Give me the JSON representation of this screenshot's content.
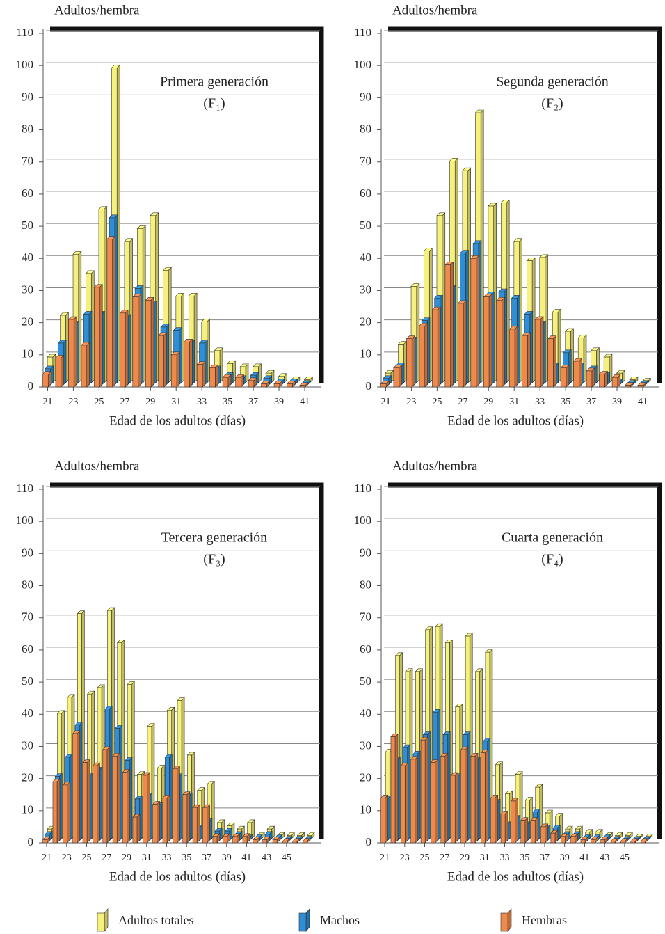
{
  "chart_data": [
    {
      "type": "bar",
      "y_label": "Adultos/hembra",
      "title": "Primera generación",
      "subtitle": "(F₁)",
      "x_label": "Edad de los adultos (días)",
      "categories": [
        "21",
        null,
        "23",
        null,
        "25",
        null,
        "27",
        null,
        "29",
        null,
        "31",
        null,
        "33",
        null,
        "35",
        null,
        "37",
        null,
        "39",
        null,
        "41"
      ],
      "series": [
        {
          "name": "Adultos totales",
          "color": "#f6f07c",
          "values": [
            8,
            21,
            40,
            34,
            54,
            98,
            44,
            48,
            52,
            35,
            27,
            27,
            19,
            10,
            6,
            5,
            5,
            3,
            2,
            1,
            1
          ]
        },
        {
          "name": "Machos",
          "color": "#2e8fd6",
          "values": [
            5,
            13,
            19,
            22,
            22,
            52,
            21,
            30,
            25,
            18,
            17,
            13,
            13,
            5,
            3,
            2,
            3,
            2,
            1,
            1,
            0.5
          ]
        },
        {
          "name": "Hembras",
          "color": "#ef8a4c",
          "values": [
            4,
            9,
            21,
            13,
            31,
            46,
            23,
            28,
            27,
            16,
            10,
            14,
            7,
            6,
            3,
            3,
            2,
            1,
            1,
            1,
            0.5
          ]
        }
      ],
      "ylim": [
        0,
        110
      ],
      "yticks": [
        0,
        10,
        20,
        30,
        40,
        50,
        60,
        70,
        80,
        90,
        100,
        110
      ],
      "grid": true
    },
    {
      "type": "bar",
      "y_label": "Adultos/hembra",
      "title": "Segunda generación",
      "subtitle": "(F₂)",
      "x_label": "Edad de los adultos (días)",
      "categories": [
        "21",
        null,
        "23",
        null,
        "25",
        null,
        "27",
        null,
        "29",
        null,
        "31",
        null,
        "33",
        null,
        "35",
        null,
        "37",
        null,
        "39",
        null,
        "41"
      ],
      "series": [
        {
          "name": "Adultos totales",
          "color": "#f6f07c",
          "values": [
            3,
            12,
            30,
            41,
            52,
            69,
            66,
            84,
            55,
            56,
            44,
            38,
            39,
            22,
            16,
            14,
            10,
            8,
            3,
            1,
            0.5
          ]
        },
        {
          "name": "Machos",
          "color": "#2e8fd6",
          "values": [
            2,
            6,
            14,
            20,
            27,
            30,
            41,
            44,
            28,
            29,
            27,
            22,
            19,
            6,
            10,
            6,
            5,
            3,
            1,
            0.5,
            0.5
          ]
        },
        {
          "name": "Hembras",
          "color": "#ef8a4c",
          "values": [
            1,
            6,
            15,
            19,
            24,
            38,
            26,
            40,
            28,
            27,
            18,
            16,
            21,
            15,
            6,
            8,
            5,
            4,
            3,
            0.5,
            0.5
          ]
        }
      ],
      "ylim": [
        0,
        110
      ],
      "yticks": [
        0,
        10,
        20,
        30,
        40,
        50,
        60,
        70,
        80,
        90,
        100,
        110
      ],
      "grid": true
    },
    {
      "type": "bar",
      "y_label": "Adultos/hembra",
      "title": "Tercera generación",
      "subtitle": "(F₃)",
      "x_label": "Edad de los adultos (días)",
      "categories": [
        "21",
        null,
        "23",
        null,
        "25",
        null,
        "27",
        null,
        "29",
        null,
        "31",
        null,
        "33",
        null,
        "35",
        null,
        "37",
        null,
        "39",
        null,
        "41",
        null,
        "43",
        null,
        "45",
        null,
        null
      ],
      "series": [
        {
          "name": "Adultos totales",
          "color": "#f6f07c",
          "values": [
            3,
            39,
            44,
            70,
            45,
            47,
            71,
            61,
            48,
            20,
            35,
            22,
            40,
            43,
            26,
            15,
            17,
            5,
            4,
            3,
            5,
            1,
            3,
            1,
            1,
            1,
            1
          ]
        },
        {
          "name": "Machos",
          "color": "#2e8fd6",
          "values": [
            2,
            20,
            26,
            36,
            20,
            22,
            41,
            35,
            25,
            13,
            14,
            11,
            26,
            20,
            14,
            4,
            6,
            3,
            3,
            2,
            1,
            1,
            2,
            1,
            0.5,
            0.5,
            0.5
          ]
        },
        {
          "name": "Hembras",
          "color": "#ef8a4c",
          "values": [
            1,
            19,
            18,
            34,
            25,
            24,
            29,
            27,
            22,
            8,
            21,
            12,
            14,
            23,
            15,
            11,
            11,
            2,
            2,
            2,
            2,
            1,
            1,
            1,
            0.5,
            0.5,
            0.5
          ]
        }
      ],
      "ylim": [
        0,
        110
      ],
      "yticks": [
        0,
        10,
        20,
        30,
        40,
        50,
        60,
        70,
        80,
        90,
        100,
        110
      ],
      "grid": true
    },
    {
      "type": "bar",
      "y_label": "Adultos/hembra",
      "title": "Cuarta generación",
      "subtitle": "(F₄)",
      "x_label": "Edad de los adultos (días)",
      "categories": [
        "21",
        null,
        "23",
        null,
        "25",
        null,
        "27",
        null,
        "29",
        null,
        "31",
        null,
        "33",
        null,
        "35",
        null,
        "37",
        null,
        "39",
        null,
        "41",
        null,
        "43",
        null,
        "45",
        null,
        null
      ],
      "series": [
        {
          "name": "Adultos totales",
          "color": "#f6f07c",
          "values": [
            27,
            57,
            52,
            52,
            65,
            66,
            61,
            41,
            63,
            52,
            58,
            23,
            14,
            20,
            12,
            16,
            8,
            7,
            3,
            3,
            2,
            2,
            1,
            1,
            1,
            0.5,
            0.5
          ]
        },
        {
          "name": "Machos",
          "color": "#2e8fd6",
          "values": [
            13,
            25,
            29,
            27,
            33,
            40,
            33,
            20,
            33,
            25,
            31,
            12,
            5,
            7,
            5,
            9,
            4,
            4,
            2,
            2,
            1,
            1,
            1,
            0.5,
            0.5,
            0.5,
            0.5
          ]
        },
        {
          "name": "Hembras",
          "color": "#ef8a4c",
          "values": [
            14,
            33,
            24,
            26,
            32,
            25,
            27,
            21,
            29,
            27,
            28,
            14,
            9,
            13,
            7,
            7,
            5,
            3,
            2,
            2,
            1,
            1,
            1,
            0.5,
            0.5,
            0.5,
            0.5
          ]
        }
      ],
      "ylim": [
        0,
        110
      ],
      "yticks": [
        0,
        10,
        20,
        30,
        40,
        50,
        60,
        70,
        80,
        90,
        100,
        110
      ],
      "grid": true
    }
  ]
}
